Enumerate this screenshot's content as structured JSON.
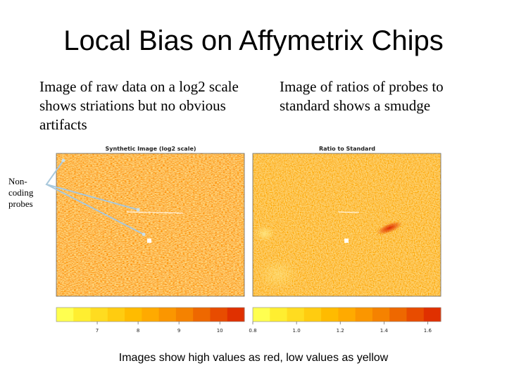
{
  "slide": {
    "title": "Local Bias on Affymetrix Chips",
    "caption_left": "Image of raw data on a log2 scale shows striations but no obvious artifacts",
    "caption_right": "Image of ratios of probes to standard shows a smudge",
    "side_label": "Non-coding probes",
    "footer": "Images show high values as red, low values as yellow"
  },
  "figures": {
    "left": {
      "title": "Synthetic Image (log2 scale)",
      "colorbar_ticks": [
        "7",
        "8",
        "9",
        "10"
      ],
      "colorbar_tick_values": [
        7,
        8,
        9,
        10
      ],
      "colorbar_range": [
        6,
        10.6
      ]
    },
    "right": {
      "title": "Ratio to Standard",
      "colorbar_ticks": [
        "0.8",
        "1.0",
        "1.2",
        "1.4",
        "1.6"
      ],
      "colorbar_tick_values": [
        0.8,
        1.0,
        1.2,
        1.4,
        1.6
      ],
      "colorbar_range": [
        0.8,
        1.66
      ]
    }
  },
  "colors": {
    "low": "#ffff40",
    "mid": "#ffb000",
    "high": "#e03000",
    "pointer": "#a8c8dc"
  }
}
